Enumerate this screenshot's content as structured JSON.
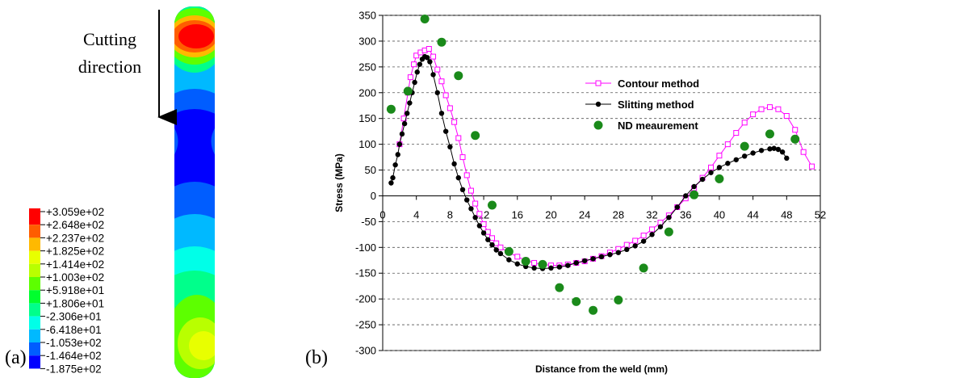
{
  "panel_a": {
    "label": "(a)",
    "annotation": [
      "Cutting",
      "direction"
    ],
    "legend_labels": [
      "+3.059e+02",
      "+2.648e+02",
      "+2.237e+02",
      "+1.825e+02",
      "+1.414e+02",
      "+1.003e+02",
      "+5.918e+01",
      "+1.806e+01",
      "-2.306e+01",
      "-6.418e+01",
      "-1.053e+02",
      "-1.464e+02",
      "-1.875e+02"
    ],
    "legend_colors": [
      "#ff0000",
      "#ff5d00",
      "#ffb900",
      "#e8ff00",
      "#b9ff00",
      "#5dff00",
      "#00ff2e",
      "#00ff8b",
      "#00ffe8",
      "#00b9ff",
      "#005dff",
      "#0000ff"
    ]
  },
  "chart_data": {
    "type": "line",
    "panel_label": "(b)",
    "x_label": "Distance from the weld (mm)",
    "y_label": "Stress (MPa)",
    "xlim": [
      0,
      52
    ],
    "xticks": [
      0,
      4,
      8,
      12,
      16,
      20,
      24,
      28,
      32,
      36,
      40,
      44,
      48,
      52
    ],
    "ylim": [
      -300,
      350
    ],
    "yticks": [
      -300,
      -250,
      -200,
      -150,
      -100,
      -50,
      0,
      50,
      100,
      150,
      200,
      250,
      300,
      350
    ],
    "grid": true,
    "legend": "upper center",
    "series": [
      {
        "name": "Contour method",
        "color": "#ff00ff",
        "marker": "square-open",
        "line": true,
        "x": [
          2,
          2.5,
          3,
          3.3,
          3.7,
          4,
          4.5,
          5,
          5.5,
          6,
          6.5,
          7,
          7.5,
          8,
          8.5,
          9,
          9.5,
          10,
          10.5,
          11,
          11.5,
          12,
          12.5,
          13,
          13.5,
          14,
          15,
          16,
          17,
          18,
          19,
          20,
          21,
          22,
          23,
          24,
          25,
          26,
          27,
          28,
          29,
          30,
          31,
          32,
          33,
          34,
          35,
          36,
          37,
          38,
          39,
          40,
          41,
          42,
          43,
          44,
          45,
          46,
          47,
          48,
          49,
          50,
          51
        ],
        "values": [
          100,
          150,
          200,
          230,
          255,
          272,
          278,
          282,
          285,
          270,
          245,
          222,
          195,
          170,
          143,
          112,
          75,
          40,
          10,
          -15,
          -35,
          -55,
          -70,
          -82,
          -92,
          -100,
          -110,
          -118,
          -125,
          -130,
          -133,
          -135,
          -135,
          -133,
          -130,
          -127,
          -122,
          -117,
          -110,
          -103,
          -95,
          -87,
          -77,
          -65,
          -52,
          -38,
          -22,
          -5,
          15,
          35,
          55,
          78,
          100,
          122,
          142,
          158,
          168,
          172,
          168,
          155,
          128,
          85,
          57
        ]
      },
      {
        "name": "Slitting method",
        "color": "#000000",
        "marker": "circle",
        "line": true,
        "x": [
          1,
          1.2,
          1.5,
          1.8,
          2,
          2.3,
          2.6,
          2.9,
          3.2,
          3.5,
          3.8,
          4.1,
          4.4,
          4.7,
          5,
          5.3,
          5.6,
          6,
          6.5,
          7,
          7.5,
          8,
          8.5,
          9,
          9.5,
          10,
          10.5,
          11,
          11.5,
          12,
          12.5,
          13,
          13.5,
          14,
          15,
          16,
          17,
          18,
          19,
          20,
          21,
          22,
          23,
          24,
          25,
          26,
          27,
          28,
          29,
          30,
          31,
          32,
          33,
          34,
          35,
          36,
          37,
          38,
          39,
          40,
          41,
          42,
          43,
          44,
          45,
          46,
          46.5,
          47,
          47.5,
          48
        ],
        "values": [
          25,
          35,
          60,
          80,
          100,
          120,
          140,
          160,
          180,
          200,
          220,
          240,
          255,
          265,
          270,
          268,
          260,
          235,
          200,
          160,
          125,
          95,
          62,
          35,
          12,
          -8,
          -25,
          -42,
          -58,
          -72,
          -85,
          -95,
          -105,
          -112,
          -124,
          -132,
          -137,
          -140,
          -141,
          -140,
          -138,
          -135,
          -130,
          -126,
          -122,
          -118,
          -114,
          -110,
          -104,
          -97,
          -88,
          -75,
          -60,
          -42,
          -22,
          0,
          18,
          32,
          45,
          55,
          63,
          70,
          77,
          83,
          88,
          91,
          92,
          90,
          85,
          73
        ]
      },
      {
        "name": "ND meaurement",
        "color": "#1a8a1a",
        "marker": "circle",
        "line": false,
        "x": [
          1,
          3,
          5,
          7,
          9,
          11,
          13,
          15,
          17,
          19,
          21,
          23,
          25,
          28,
          31,
          34,
          37,
          40,
          43,
          46,
          49
        ],
        "values": [
          168,
          203,
          343,
          298,
          233,
          117,
          -18,
          -108,
          -127,
          -133,
          -178,
          -205,
          -222,
          -202,
          -140,
          -70,
          2,
          33,
          96,
          120,
          110
        ]
      }
    ]
  }
}
